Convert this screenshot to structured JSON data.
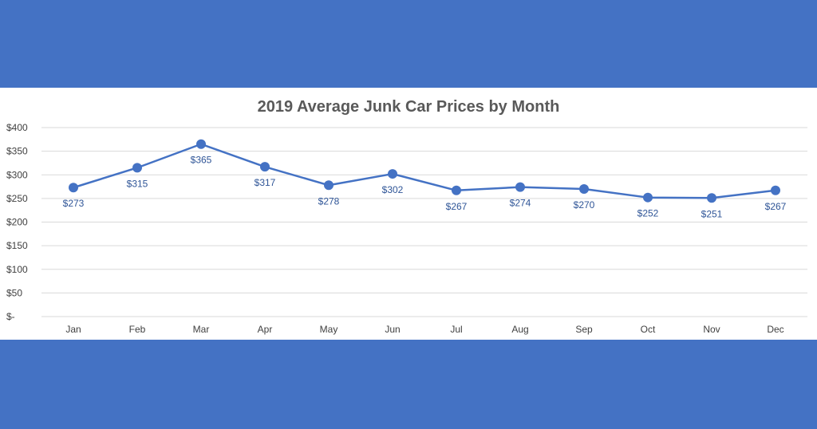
{
  "chart_data": {
    "type": "line",
    "title": "2019 Average Junk Car Prices by Month",
    "xlabel": "",
    "ylabel": "",
    "categories": [
      "Jan",
      "Feb",
      "Mar",
      "Apr",
      "May",
      "Jun",
      "Jul",
      "Aug",
      "Sep",
      "Oct",
      "Nov",
      "Dec"
    ],
    "values": [
      273,
      315,
      365,
      317,
      278,
      302,
      267,
      274,
      270,
      252,
      251,
      267
    ],
    "data_labels": [
      "$273",
      "$315",
      "$365",
      "$317",
      "$278",
      "$302",
      "$267",
      "$274",
      "$270",
      "$252",
      "$251",
      "$267"
    ],
    "ylim": [
      0,
      400
    ],
    "yticks": [
      0,
      50,
      100,
      150,
      200,
      250,
      300,
      350,
      400
    ],
    "ytick_labels": [
      "$-",
      "$50",
      "$100",
      "$150",
      "$200",
      "$250",
      "$300",
      "$350",
      "$400"
    ],
    "grid": true,
    "legend": "none",
    "colors": {
      "line": "#4472c4",
      "marker": "#4472c4",
      "data_label": "#2f5597",
      "background_band": "#4472c4",
      "plot_background": "#ffffff"
    }
  }
}
